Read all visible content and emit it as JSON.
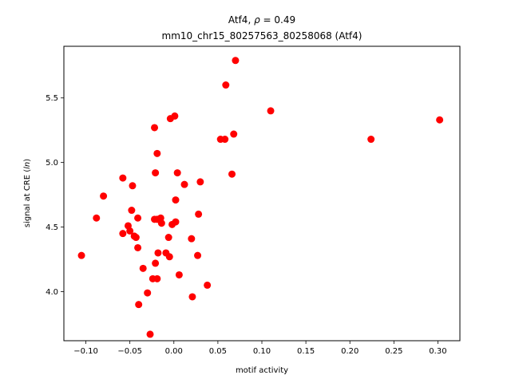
{
  "chart_data": {
    "type": "scatter",
    "title_main": "Atf4, ",
    "title_rho_symbol": "ρ",
    "title_rho_value": " = 0.49",
    "subtitle": "mm10_chr15_80257563_80258068 (Atf4)",
    "xlabel": "motif activity",
    "ylabel_prefix": "signal at CRE (",
    "ylabel_italic": "ln",
    "ylabel_suffix": ")",
    "xlim": [
      -0.125,
      0.325
    ],
    "ylim": [
      3.62,
      5.9
    ],
    "xticks": [
      -0.1,
      -0.05,
      0.0,
      0.05,
      0.1,
      0.15,
      0.2,
      0.25,
      0.3
    ],
    "xtick_labels": [
      "−0.10",
      "−0.05",
      "0.00",
      "0.05",
      "0.10",
      "0.15",
      "0.20",
      "0.25",
      "0.30"
    ],
    "yticks": [
      4.0,
      4.5,
      5.0,
      5.5
    ],
    "ytick_labels": [
      "4.0",
      "4.5",
      "5.0",
      "5.5"
    ],
    "marker_color": "#ff0000",
    "grid": false,
    "points": [
      {
        "x": -0.105,
        "y": 4.28
      },
      {
        "x": -0.088,
        "y": 4.57
      },
      {
        "x": -0.08,
        "y": 4.74
      },
      {
        "x": -0.058,
        "y": 4.88
      },
      {
        "x": -0.058,
        "y": 4.45
      },
      {
        "x": -0.052,
        "y": 4.51
      },
      {
        "x": -0.05,
        "y": 4.47
      },
      {
        "x": -0.048,
        "y": 4.63
      },
      {
        "x": -0.047,
        "y": 4.82
      },
      {
        "x": -0.045,
        "y": 4.43
      },
      {
        "x": -0.043,
        "y": 4.42
      },
      {
        "x": -0.041,
        "y": 4.57
      },
      {
        "x": -0.041,
        "y": 4.34
      },
      {
        "x": -0.04,
        "y": 3.9
      },
      {
        "x": -0.035,
        "y": 4.18
      },
      {
        "x": -0.03,
        "y": 3.99
      },
      {
        "x": -0.027,
        "y": 3.67
      },
      {
        "x": -0.024,
        "y": 4.1
      },
      {
        "x": -0.022,
        "y": 4.56
      },
      {
        "x": -0.022,
        "y": 5.27
      },
      {
        "x": -0.021,
        "y": 4.92
      },
      {
        "x": -0.021,
        "y": 4.22
      },
      {
        "x": -0.019,
        "y": 5.07
      },
      {
        "x": -0.019,
        "y": 4.56
      },
      {
        "x": -0.019,
        "y": 4.1
      },
      {
        "x": -0.018,
        "y": 4.3
      },
      {
        "x": -0.015,
        "y": 4.57
      },
      {
        "x": -0.014,
        "y": 4.53
      },
      {
        "x": -0.009,
        "y": 4.3
      },
      {
        "x": -0.006,
        "y": 4.42
      },
      {
        "x": -0.005,
        "y": 4.27
      },
      {
        "x": -0.004,
        "y": 5.34
      },
      {
        "x": -0.002,
        "y": 4.52
      },
      {
        "x": 0.001,
        "y": 5.36
      },
      {
        "x": 0.002,
        "y": 4.71
      },
      {
        "x": 0.002,
        "y": 4.54
      },
      {
        "x": 0.004,
        "y": 4.92
      },
      {
        "x": 0.006,
        "y": 4.13
      },
      {
        "x": 0.012,
        "y": 4.83
      },
      {
        "x": 0.02,
        "y": 4.41
      },
      {
        "x": 0.021,
        "y": 3.96
      },
      {
        "x": 0.027,
        "y": 4.28
      },
      {
        "x": 0.028,
        "y": 4.6
      },
      {
        "x": 0.03,
        "y": 4.85
      },
      {
        "x": 0.038,
        "y": 4.05
      },
      {
        "x": 0.053,
        "y": 5.18
      },
      {
        "x": 0.058,
        "y": 5.18
      },
      {
        "x": 0.059,
        "y": 5.6
      },
      {
        "x": 0.066,
        "y": 4.91
      },
      {
        "x": 0.068,
        "y": 5.22
      },
      {
        "x": 0.07,
        "y": 5.79
      },
      {
        "x": 0.11,
        "y": 5.4
      },
      {
        "x": 0.224,
        "y": 5.18
      },
      {
        "x": 0.302,
        "y": 5.33
      }
    ]
  }
}
